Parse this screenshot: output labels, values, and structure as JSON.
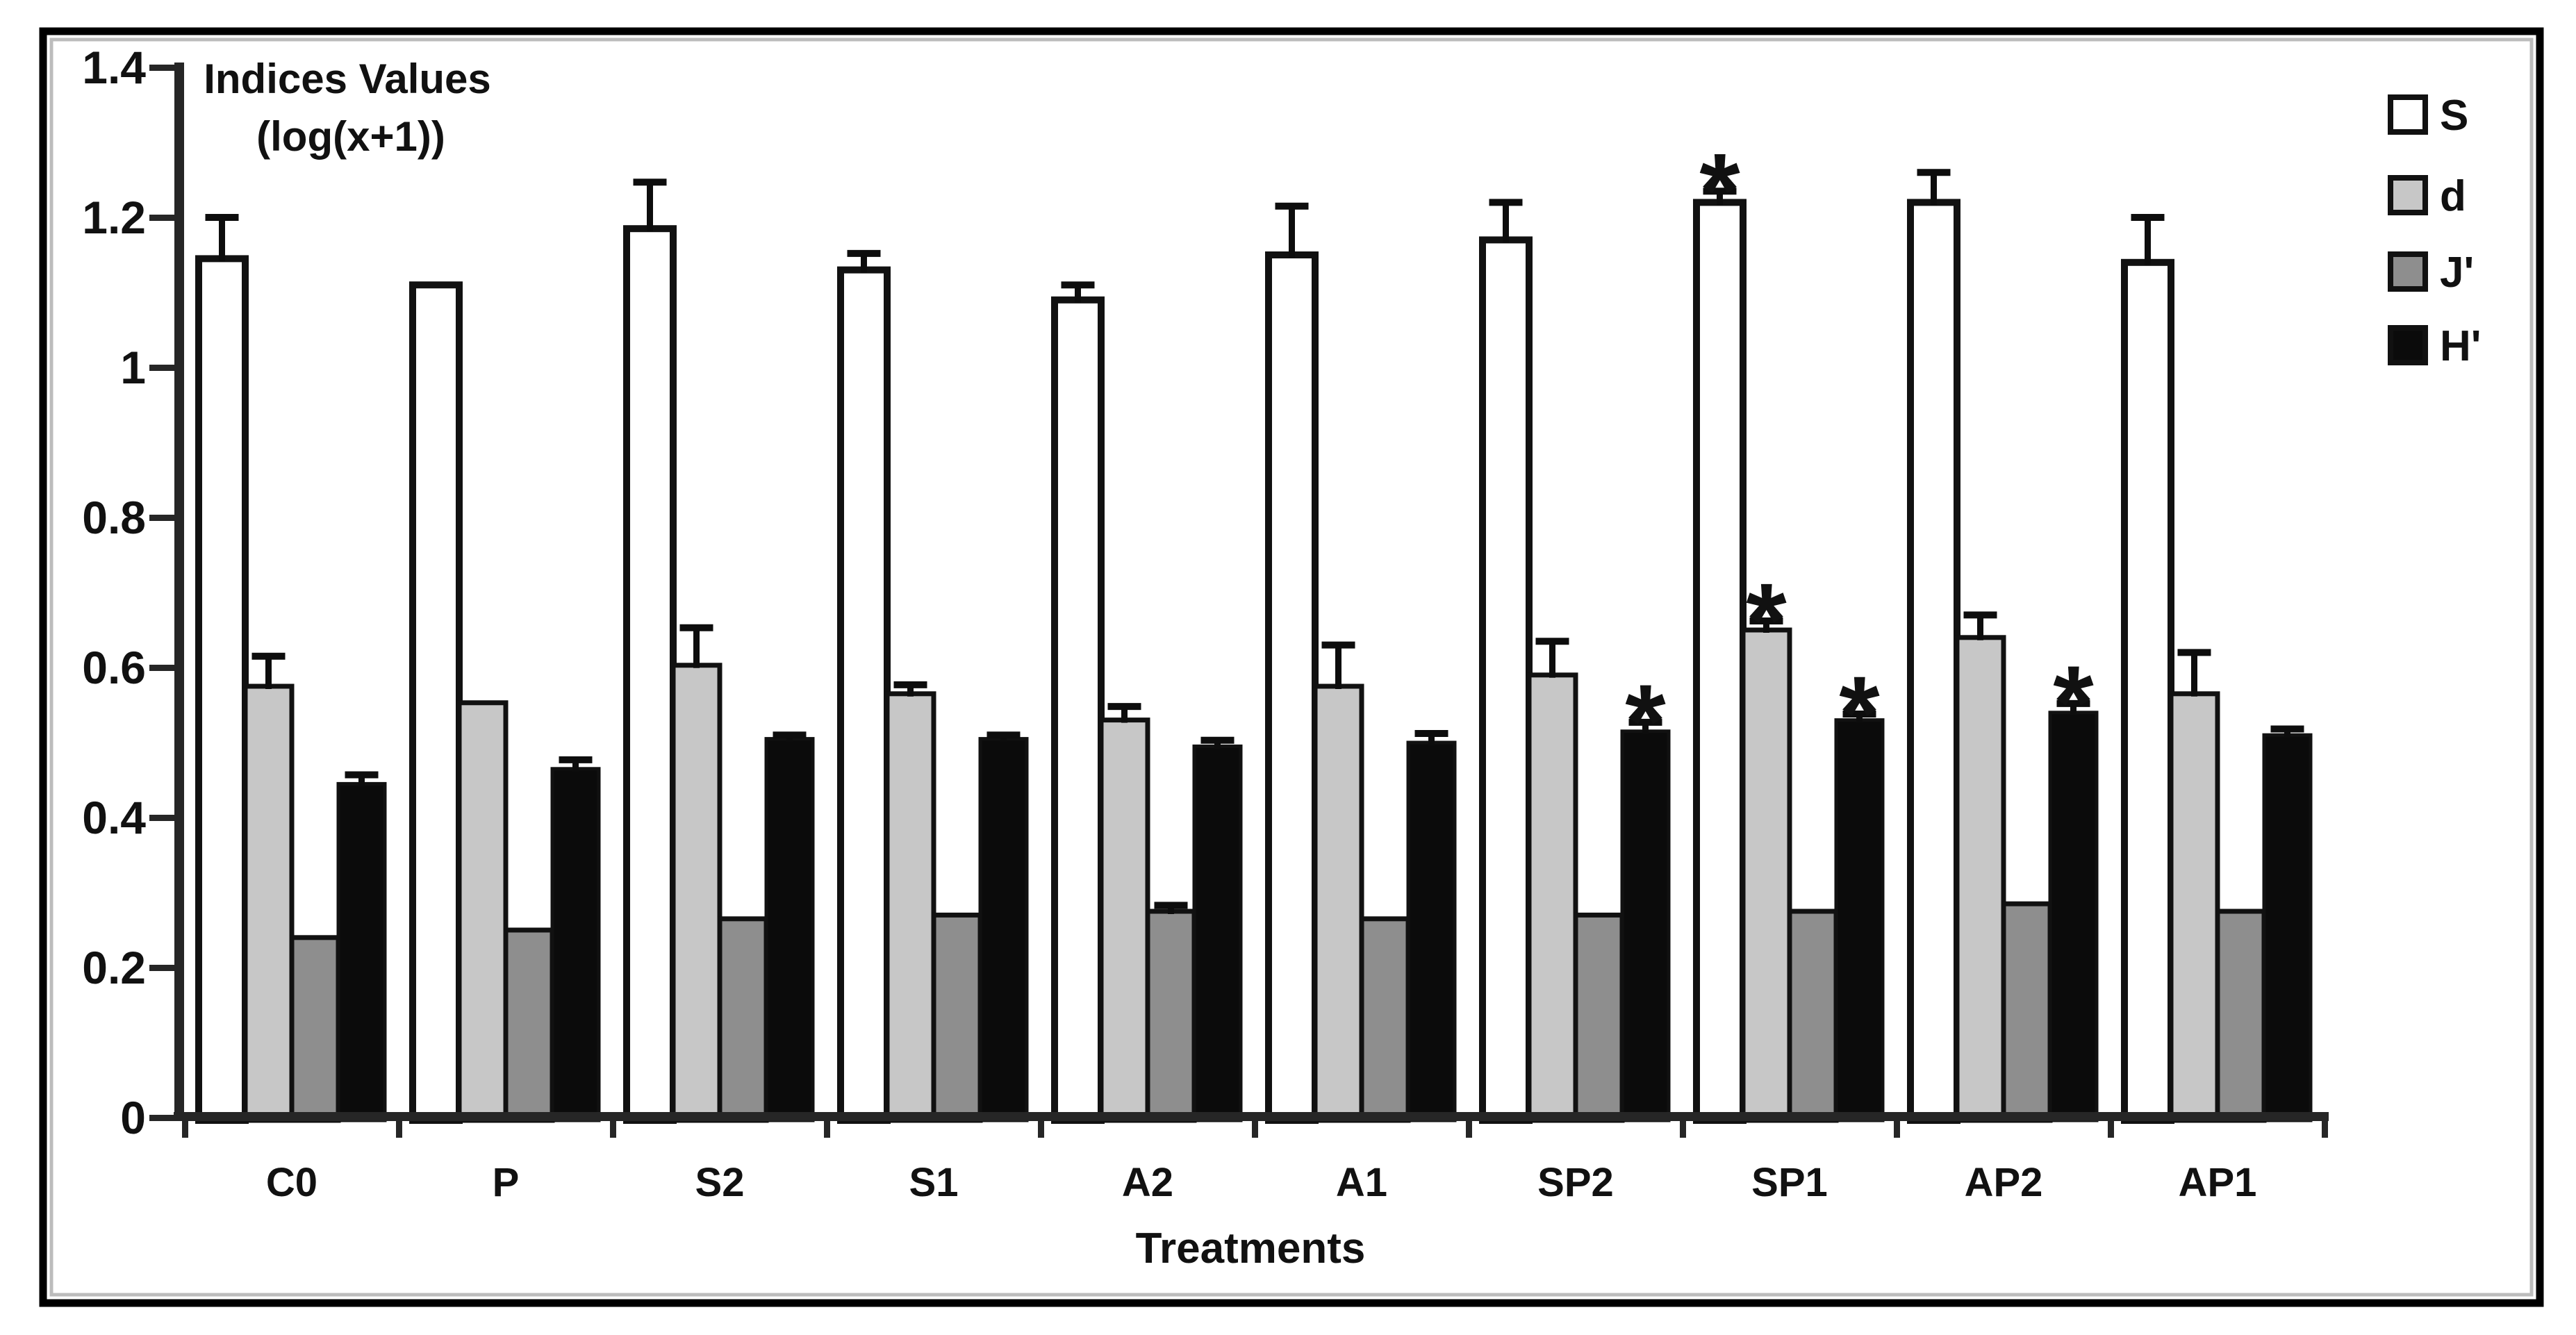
{
  "chart_data": {
    "type": "bar",
    "title": "Indices Values (log(x+1))",
    "y_axis_title_lines": [
      "Indices Values",
      "(log(x+1))"
    ],
    "xlabel": "Treatments",
    "ylabel": "Indices Values (log(x+1))",
    "ylim": [
      0,
      1.4
    ],
    "yticks": [
      1.4,
      1.2,
      1.0,
      0.8,
      0.6,
      0.4,
      0.2,
      0
    ],
    "ytick_labels": [
      "1.4",
      "1.2",
      "1",
      "0.8",
      "0.6",
      "0.4",
      "0.2",
      "0"
    ],
    "categories": [
      "C0",
      "P",
      "S2",
      "S1",
      "A2",
      "A1",
      "SP2",
      "SP1",
      "AP2",
      "AP1"
    ],
    "grid": false,
    "legend_position": "top-right",
    "series": [
      {
        "name": "S",
        "fill": "#ffffff",
        "stroke": "#111111",
        "stroke_width": 10,
        "values": [
          1.145,
          1.11,
          1.185,
          1.13,
          1.09,
          1.15,
          1.17,
          1.22,
          1.22,
          1.14
        ],
        "errors_up": [
          0.055,
          0,
          0.062,
          0.022,
          0.02,
          0.065,
          0.05,
          0.015,
          0.04,
          0.06
        ]
      },
      {
        "name": "d",
        "fill": "#c7c7c7",
        "stroke": "#111111",
        "stroke_width": 7,
        "values": [
          0.575,
          0.553,
          0.603,
          0.565,
          0.53,
          0.575,
          0.59,
          0.65,
          0.64,
          0.565
        ],
        "errors_up": [
          0.04,
          0,
          0.05,
          0.012,
          0.018,
          0.055,
          0.045,
          0.012,
          0.03,
          0.055
        ]
      },
      {
        "name": "J'",
        "fill": "#8e8e8e",
        "stroke": "#111111",
        "stroke_width": 7,
        "values": [
          0.24,
          0.25,
          0.265,
          0.27,
          0.275,
          0.265,
          0.27,
          0.275,
          0.285,
          0.275
        ],
        "errors_up": [
          0,
          0,
          0,
          0,
          0.008,
          0,
          0,
          0,
          0,
          0
        ]
      },
      {
        "name": "H'",
        "fill": "#0b0b0b",
        "stroke": "#111111",
        "stroke_width": 5,
        "values": [
          0.445,
          0.465,
          0.505,
          0.505,
          0.495,
          0.5,
          0.515,
          0.53,
          0.54,
          0.51
        ],
        "errors_up": [
          0.012,
          0.012,
          0.005,
          0.005,
          0.008,
          0.012,
          0.012,
          0.008,
          0.012,
          0.008
        ]
      }
    ],
    "significance_asterisks": [
      {
        "series": "S",
        "category": "SP1",
        "symbol": "*"
      },
      {
        "series": "d",
        "category": "SP1",
        "symbol": "*"
      },
      {
        "series": "H'",
        "category": "SP2",
        "symbol": "*"
      },
      {
        "series": "H'",
        "category": "SP1",
        "symbol": "*"
      },
      {
        "series": "H'",
        "category": "AP2",
        "symbol": "*"
      }
    ],
    "colors": {
      "axis": "#262626",
      "bar_outline": "#111111",
      "error_bar": "#0d0d0d",
      "frame": "#000000",
      "frame_inner_highlight": "#bcbcbc",
      "background": "#ffffff"
    }
  }
}
